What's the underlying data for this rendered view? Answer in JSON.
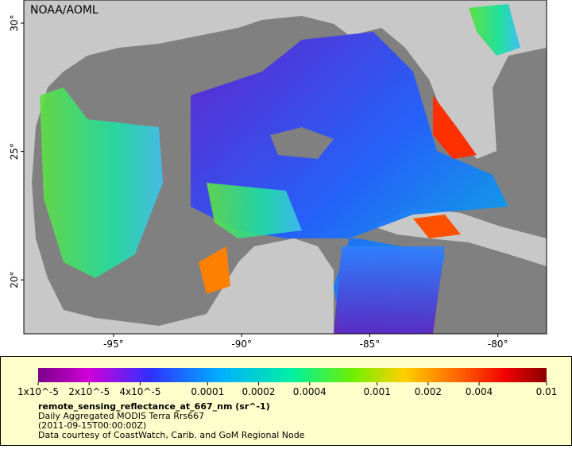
{
  "map": {
    "credit": "NOAA/AOML",
    "lon_range": [
      -98.5,
      -78.1
    ],
    "lat_range": [
      17.9,
      30.9
    ],
    "lat_ticks": [
      {
        "value": 30,
        "label": "30°"
      },
      {
        "value": 25,
        "label": "25°"
      },
      {
        "value": 20,
        "label": "20°"
      }
    ],
    "lon_ticks": [
      {
        "value": -95,
        "label": "-95°"
      },
      {
        "value": -90,
        "label": "-90°"
      },
      {
        "value": -85,
        "label": "-85°"
      },
      {
        "value": -80,
        "label": "-80°"
      }
    ]
  },
  "colorbar": {
    "range": [
      1e-05,
      0.01
    ],
    "log_scale": true,
    "ticks": [
      {
        "value": 1e-05,
        "label": "1x10^-5"
      },
      {
        "value": 2e-05,
        "label": "2x10^-5"
      },
      {
        "value": 4e-05,
        "label": "4x10^-5"
      },
      {
        "value": 0.0001,
        "label": "0.0001"
      },
      {
        "value": 0.0002,
        "label": "0.0002"
      },
      {
        "value": 0.0004,
        "label": "0.0004"
      },
      {
        "value": 0.001,
        "label": "0.001"
      },
      {
        "value": 0.002,
        "label": "0.002"
      },
      {
        "value": 0.004,
        "label": "0.004"
      },
      {
        "value": 0.01,
        "label": "0.01"
      }
    ]
  },
  "legend": {
    "variable": "remote_sensing_reflectance_at_667_nm (sr^-1)",
    "description": "Daily Aggregated MODIS Terra Rrs667",
    "time": "(2011-09-15T00:00:00Z)",
    "source": "Data courtesy of CoastWatch, Carib. and GoM Regional Node"
  }
}
